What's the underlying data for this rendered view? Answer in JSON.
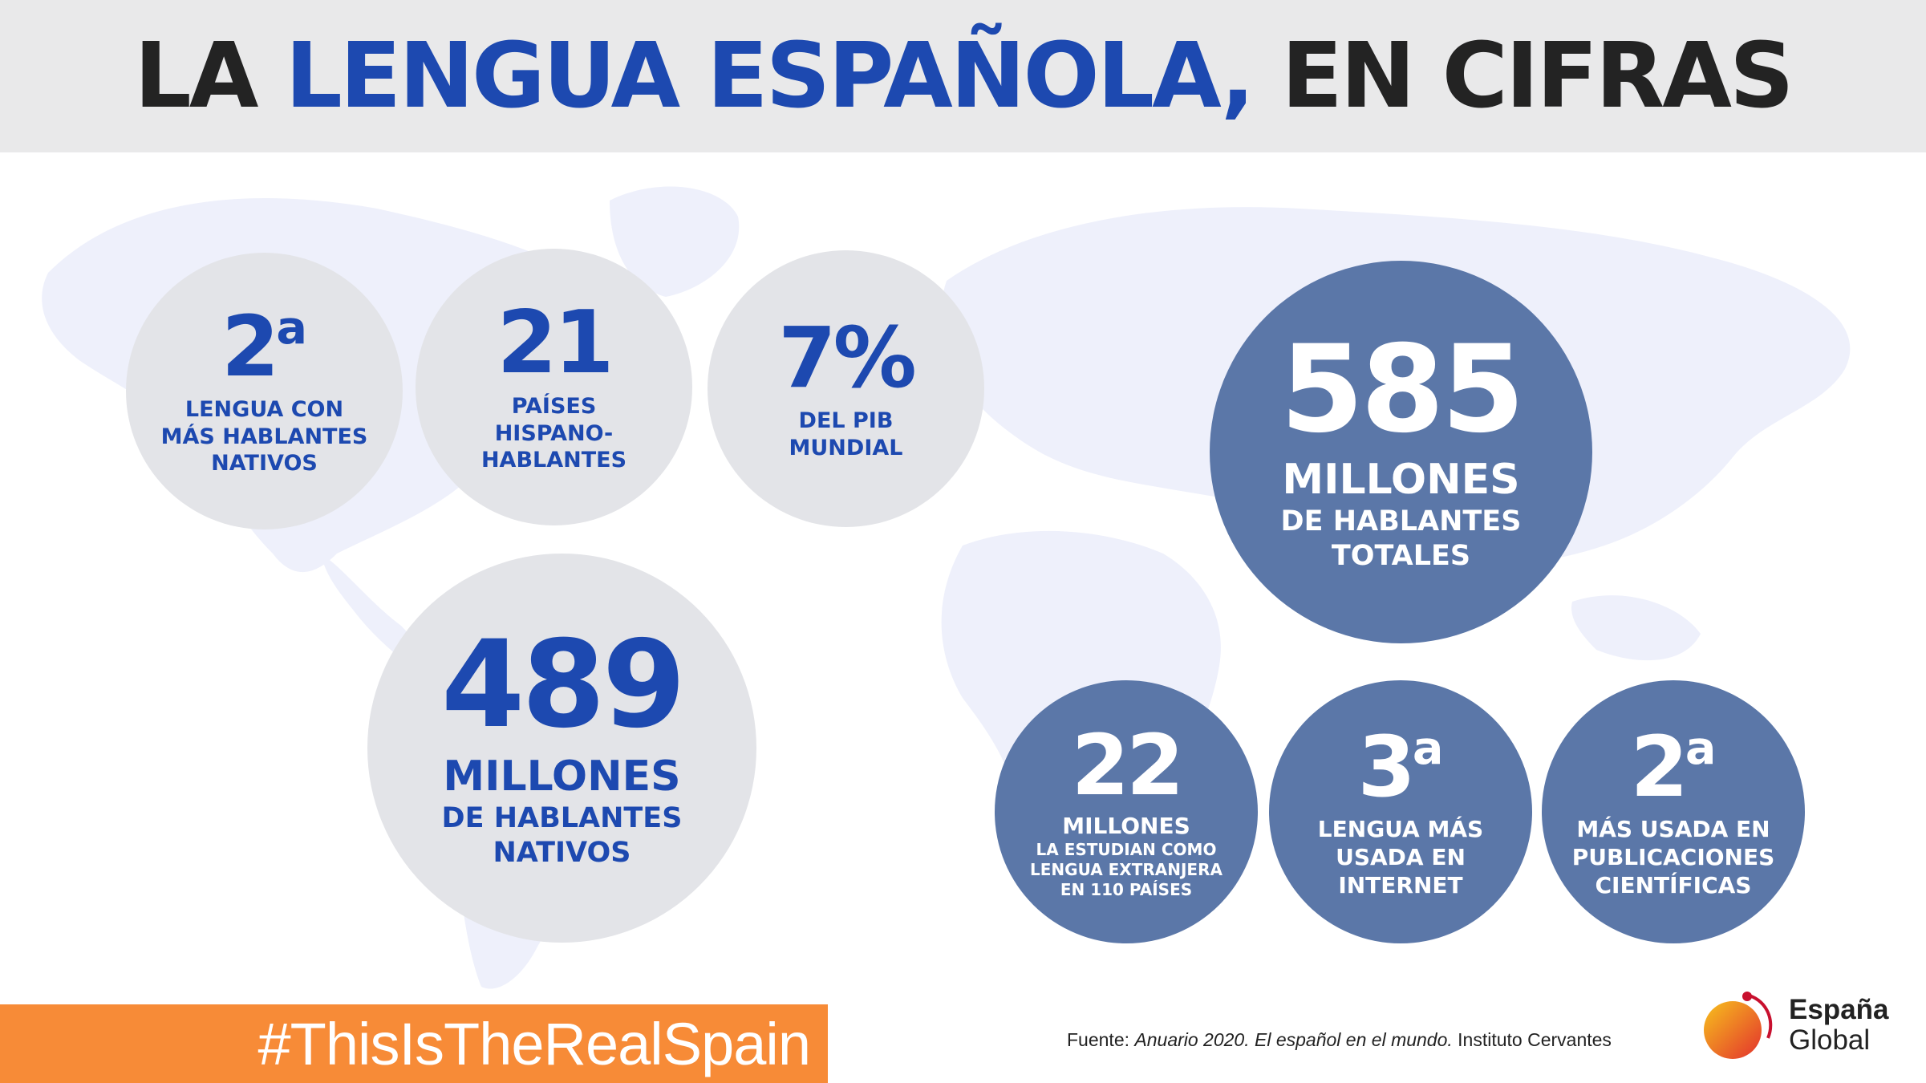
{
  "title": {
    "pre": "LA ",
    "highlight": "LENGUA ESPAÑOLA,",
    "post": " EN CIFRAS"
  },
  "colors": {
    "blue": "#1d49b0",
    "navy": "#5b77a8",
    "grey": "#e3e4e8",
    "orange": "#f78b37",
    "map": "#eef0fb"
  },
  "stats": {
    "rank_native": {
      "number": "2",
      "sup": "a",
      "label": [
        "LENGUA CON",
        "MÁS HABLANTES",
        "NATIVOS"
      ]
    },
    "countries": {
      "number": "21",
      "label": [
        "PAÍSES",
        "HISPANO-",
        "HABLANTES"
      ]
    },
    "gdp": {
      "number": "7%",
      "label": [
        "DEL PIB",
        "MUNDIAL"
      ]
    },
    "native_speakers": {
      "number": "489",
      "label": [
        "MILLONES",
        "DE HABLANTES",
        "NATIVOS"
      ]
    },
    "total_speakers": {
      "number": "585",
      "label": [
        "MILLONES",
        "DE HABLANTES",
        "TOTALES"
      ]
    },
    "students": {
      "number": "22",
      "label": [
        "MILLONES",
        "LA ESTUDIAN COMO",
        "LENGUA EXTRANJERA",
        "EN 110 PAÍSES"
      ]
    },
    "internet": {
      "number": "3",
      "sup": "a",
      "label": [
        "LENGUA MÁS",
        "USADA EN",
        "INTERNET"
      ]
    },
    "science": {
      "number": "2",
      "sup": "a",
      "label": [
        "MÁS USADA EN",
        "PUBLICACIONES",
        "CIENTÍFICAS"
      ]
    }
  },
  "hashtag": "#ThisIsTheRealSpain",
  "source": {
    "prefix": "Fuente: ",
    "italic": "Anuario 2020. El español en el mundo.",
    "suffix": " Instituto Cervantes"
  },
  "brand": {
    "line1": "España",
    "line2": "Global"
  }
}
